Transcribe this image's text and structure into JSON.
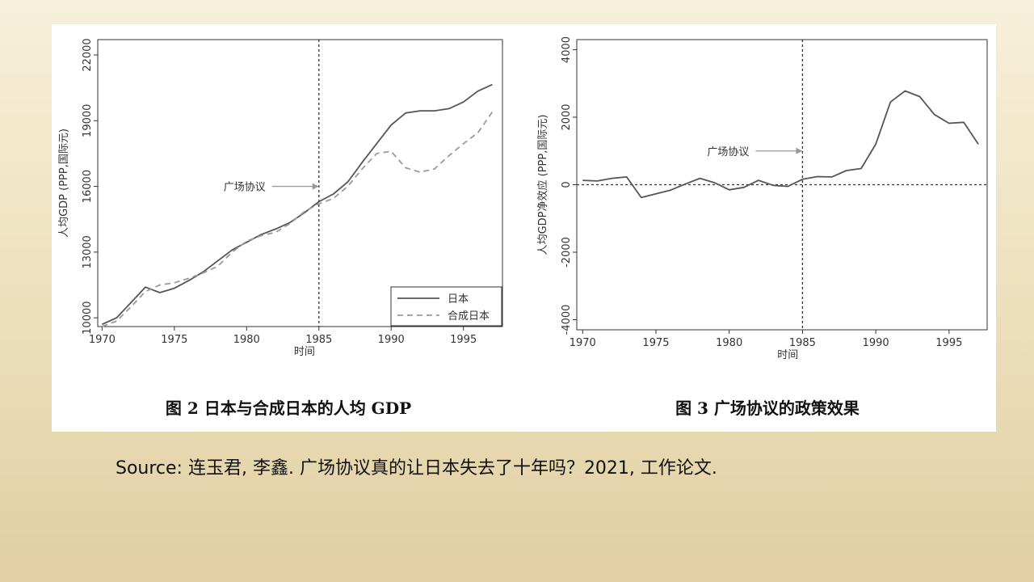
{
  "chart_data": [
    {
      "type": "line",
      "figure_number": "图 2",
      "title": "日本与合成日本的人均 GDP",
      "xlabel": "时间",
      "ylabel": "人均GDP (PPP,国际元)",
      "x_ticks": [
        1970,
        1975,
        1980,
        1985,
        1990,
        1995
      ],
      "y_ticks": [
        10000,
        13000,
        16000,
        19000,
        22000
      ],
      "xlim": [
        1969.7,
        1997.7
      ],
      "ylim": [
        9600,
        22700
      ],
      "grid": false,
      "legend_position": "bottom-right",
      "x": [
        1970,
        1971,
        1972,
        1973,
        1974,
        1975,
        1976,
        1977,
        1978,
        1979,
        1980,
        1981,
        1982,
        1983,
        1984,
        1985,
        1986,
        1987,
        1988,
        1989,
        1990,
        1991,
        1992,
        1993,
        1994,
        1995,
        1996,
        1997
      ],
      "series": [
        {
          "name": "日本",
          "style": "solid",
          "values": [
            9700,
            10000,
            10700,
            11400,
            11150,
            11350,
            11700,
            12100,
            12600,
            13100,
            13450,
            13800,
            14050,
            14350,
            14800,
            15300,
            15650,
            16200,
            17100,
            17950,
            18800,
            19350,
            19450,
            19450,
            19550,
            19850,
            20350,
            20650
          ]
        },
        {
          "name": "合成日本",
          "style": "dashed",
          "values": [
            9600,
            9850,
            10500,
            11200,
            11500,
            11600,
            11800,
            12050,
            12350,
            13000,
            13500,
            13750,
            13900,
            14300,
            14850,
            15200,
            15450,
            16000,
            16800,
            17500,
            17600,
            16850,
            16650,
            16800,
            17400,
            17950,
            18450,
            19400
          ]
        }
      ],
      "vertical_reference": 1985,
      "annotation": {
        "text": "广场协议",
        "x": 1985,
        "y": 16000
      }
    },
    {
      "type": "line",
      "figure_number": "图 3",
      "title": "广场协议的政策效果",
      "xlabel": "时间",
      "ylabel": "人均GDP净效应 (PPP,国际元)",
      "x_ticks": [
        1970,
        1975,
        1980,
        1985,
        1990,
        1995
      ],
      "y_ticks": [
        -4000,
        -2000,
        0,
        2000,
        4000
      ],
      "xlim": [
        1969.6,
        1997.6
      ],
      "ylim": [
        -4300,
        4300
      ],
      "grid": false,
      "x": [
        1970,
        1971,
        1972,
        1973,
        1974,
        1975,
        1976,
        1977,
        1978,
        1979,
        1980,
        1981,
        1982,
        1983,
        1984,
        1985,
        1986,
        1987,
        1988,
        1989,
        1990,
        1991,
        1992,
        1993,
        1994,
        1995,
        1996,
        1997
      ],
      "series": [
        {
          "values": [
            130,
            110,
            190,
            230,
            -380,
            -270,
            -160,
            20,
            190,
            60,
            -150,
            -80,
            130,
            -20,
            -50,
            160,
            240,
            230,
            420,
            480,
            1200,
            2450,
            2780,
            2610,
            2080,
            1820,
            1850,
            1200
          ]
        }
      ],
      "horizontal_reference": 0,
      "vertical_reference": 1985,
      "annotation": {
        "text": "广场协议",
        "x": 1985,
        "y": 1000
      }
    }
  ],
  "source_text": "Source: 连玉君, 李鑫. 广场协议真的让日本失去了十年吗？2021, 工作论文."
}
